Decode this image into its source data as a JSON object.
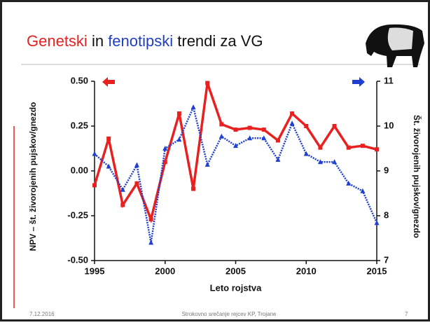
{
  "slide": {
    "title": [
      {
        "text": "Genetski",
        "color": "#e8201f"
      },
      {
        "text": " in ",
        "color": "#111111"
      },
      {
        "text": "fenotipski",
        "color": "#1f3fbf"
      },
      {
        "text": " trendi za VG",
        "color": "#111111"
      }
    ],
    "footer": {
      "date": "7.12.2016",
      "center": "Strokovno srečanje rejcev KP, Trojane",
      "page": "7"
    }
  },
  "chart_data": {
    "type": "line",
    "x_label": "Leto rojstva",
    "y_label": "NPV – št. živorojenih pujskov/gnezdo",
    "y2_label": "Št. živorojenih pujskov/gnezdo",
    "x": [
      1995,
      1996,
      1997,
      1998,
      1999,
      2000,
      2001,
      2002,
      2003,
      2004,
      2005,
      2006,
      2007,
      2008,
      2009,
      2010,
      2011,
      2012,
      2013,
      2014,
      2015
    ],
    "xlim": [
      1995,
      2015
    ],
    "xticks": [
      1995,
      2000,
      2005,
      2010,
      2015
    ],
    "ylim": [
      -0.5,
      0.5
    ],
    "yticks": [
      {
        "value": -0.5,
        "label": "-0.50"
      },
      {
        "value": -0.25,
        "label": "-0.25"
      },
      {
        "value": 0,
        "label": "0.00"
      },
      {
        "value": 0.25,
        "label": "0.25"
      },
      {
        "value": 0.5,
        "label": "0.50"
      }
    ],
    "y2lim": [
      7,
      11
    ],
    "y2ticks": [
      7,
      8,
      9,
      10,
      11
    ],
    "series": [
      {
        "color": "#e8201f",
        "axis": "y",
        "values": [
          -0.08,
          0.18,
          -0.19,
          -0.07,
          -0.27,
          0.05,
          0.32,
          -0.1,
          0.49,
          0.26,
          0.23,
          0.24,
          0.23,
          0.17,
          0.32,
          0.25,
          0.13,
          0.25,
          0.13,
          0.14,
          0.12
        ]
      },
      {
        "color": "#1f3fd0",
        "axis": "y2",
        "values": [
          9.38,
          9.1,
          8.58,
          9.13,
          7.4,
          9.5,
          9.7,
          10.42,
          9.14,
          9.77,
          9.56,
          9.73,
          9.73,
          9.25,
          10.06,
          9.38,
          9.2,
          9.2,
          8.72,
          8.55,
          7.84
        ]
      }
    ]
  }
}
